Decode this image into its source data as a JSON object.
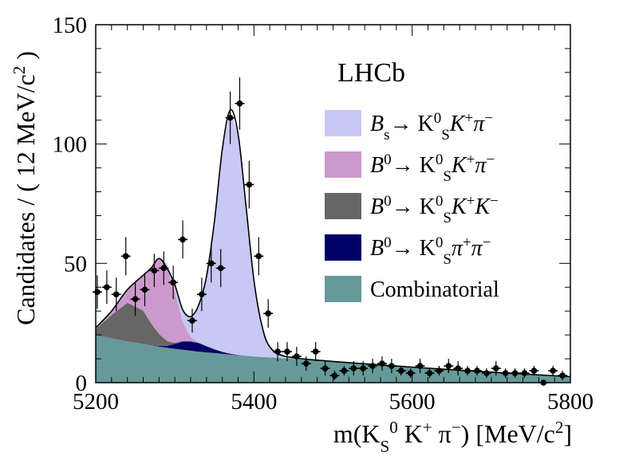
{
  "experiment_label": "LHCb",
  "colors": {
    "bs_kskpi": "#c8c8f5",
    "b0_kskpi": "#cc99cc",
    "b0_kskk": "#666666",
    "b0_kspipi": "#000066",
    "combinatorial": "#669999",
    "curve": "#000000",
    "points": "#000000"
  },
  "chart_data": {
    "type": "area",
    "title": "",
    "xlabel": "m(K_S^0 K^+ π^−) [MeV/c^2]",
    "ylabel": "Candidates / ( 12 MeV/c^2 )",
    "xlim": [
      5200,
      5800
    ],
    "ylim": [
      0,
      150
    ],
    "xticks": [
      5200,
      5400,
      5600,
      5800
    ],
    "yticks": [
      0,
      50,
      100,
      150
    ],
    "grid": false,
    "legend_position": "right",
    "legend": [
      {
        "key": "bs_kskpi",
        "parts": [
          [
            "B",
            ""
          ],
          [
            "s",
            "sub"
          ],
          [
            "→ K",
            ""
          ],
          [
            "0",
            "sup"
          ],
          [
            "S",
            "sub"
          ],
          [
            "K",
            ""
          ],
          [
            "+",
            "sup"
          ],
          [
            "π",
            ""
          ],
          [
            "−",
            "sup"
          ]
        ]
      },
      {
        "key": "b0_kskpi",
        "parts": [
          [
            "B",
            ""
          ],
          [
            "0",
            "sup"
          ],
          [
            "→ K",
            ""
          ],
          [
            "0",
            "sup"
          ],
          [
            "S",
            "sub"
          ],
          [
            "K",
            ""
          ],
          [
            "+",
            "sup"
          ],
          [
            "π",
            ""
          ],
          [
            "−",
            "sup"
          ]
        ]
      },
      {
        "key": "b0_kskk",
        "parts": [
          [
            "B",
            ""
          ],
          [
            "0",
            "sup"
          ],
          [
            "→ K",
            ""
          ],
          [
            "0",
            "sup"
          ],
          [
            "S",
            "sub"
          ],
          [
            "K",
            ""
          ],
          [
            "+",
            "sup"
          ],
          [
            "K",
            ""
          ],
          [
            "−",
            "sup"
          ]
        ]
      },
      {
        "key": "b0_kspipi",
        "parts": [
          [
            "B",
            ""
          ],
          [
            "0",
            "sup"
          ],
          [
            "→ K",
            ""
          ],
          [
            "0",
            "sup"
          ],
          [
            "S",
            "sub"
          ],
          [
            "π",
            ""
          ],
          [
            "+",
            "sup"
          ],
          [
            "π",
            ""
          ],
          [
            "−",
            "sup"
          ]
        ]
      },
      {
        "key": "combinatorial",
        "parts": [
          [
            "Combinatorial",
            ""
          ]
        ]
      }
    ],
    "component_x": [
      5200,
      5220,
      5240,
      5260,
      5270,
      5280,
      5290,
      5300,
      5310,
      5320,
      5330,
      5340,
      5350,
      5360,
      5370,
      5380,
      5390,
      5400,
      5410,
      5420,
      5440,
      5500,
      5600,
      5700,
      5800
    ],
    "series": [
      {
        "key": "combinatorial",
        "name": "Combinatorial",
        "values": [
          20,
          18.6,
          17.3,
          16.2,
          15.6,
          15.1,
          14.6,
          14.2,
          13.8,
          13.4,
          13.0,
          12.7,
          12.4,
          12.1,
          11.8,
          11.5,
          11.3,
          11.0,
          10.8,
          10.6,
          10.2,
          8.9,
          6.5,
          4.4,
          2.5
        ]
      },
      {
        "key": "b0_kspipi",
        "name": "B0→KS0π+π−",
        "values": [
          0,
          0,
          0,
          0,
          0,
          0.3,
          0.8,
          2.0,
          3.5,
          3.9,
          3.6,
          2.6,
          1.6,
          0.8,
          0.3,
          0.1,
          0,
          0,
          0,
          0,
          0,
          0,
          0,
          0,
          0
        ]
      },
      {
        "key": "b0_kskk",
        "name": "B0→KS0K+K−",
        "values": [
          2.5,
          9.7,
          16.2,
          14.0,
          9.2,
          5.0,
          2.0,
          0.5,
          0.1,
          0,
          0,
          0,
          0,
          0,
          0,
          0,
          0,
          0,
          0,
          0,
          0,
          0,
          0,
          0,
          0
        ]
      },
      {
        "key": "b0_kskpi",
        "name": "B0→KS0K+π−",
        "values": [
          0.5,
          1.7,
          5.5,
          14.8,
          23.2,
          31.6,
          31.0,
          21.3,
          8.0,
          1.7,
          0.4,
          0.1,
          0,
          0,
          0,
          0,
          0,
          0,
          0,
          0,
          0,
          0,
          0,
          0,
          0
        ]
      },
      {
        "key": "bs_kskpi",
        "name": "Bs→KS0K+π−",
        "values": [
          0,
          0,
          0,
          0,
          0,
          0.6,
          1.6,
          3.0,
          5.1,
          8.7,
          15.4,
          29.0,
          53.6,
          85.0,
          102.2,
          92.5,
          62.7,
          32.0,
          13.2,
          4.4,
          0.8,
          0,
          0,
          0,
          0
        ]
      }
    ],
    "fit_total": {
      "x": [
        5200,
        5220,
        5240,
        5260,
        5270,
        5280,
        5290,
        5300,
        5310,
        5320,
        5330,
        5340,
        5350,
        5360,
        5370,
        5380,
        5390,
        5400,
        5410,
        5420,
        5440,
        5500,
        5600,
        5700,
        5800
      ],
      "y": [
        23,
        30,
        39,
        45,
        48,
        52,
        48,
        41,
        30.5,
        27.7,
        32.4,
        44.4,
        67.6,
        97.9,
        114.3,
        104.1,
        74.0,
        43.0,
        24.0,
        15.0,
        11.0,
        8.9,
        6.5,
        4.4,
        2.5
      ]
    },
    "points": {
      "x": [
        5202,
        5214,
        5226,
        5238,
        5250,
        5262,
        5274,
        5286,
        5298,
        5310,
        5322,
        5334,
        5346,
        5358,
        5370,
        5382,
        5394,
        5406,
        5418,
        5430,
        5442,
        5454,
        5466,
        5478,
        5490,
        5502,
        5514,
        5526,
        5538,
        5550,
        5562,
        5574,
        5586,
        5598,
        5610,
        5622,
        5634,
        5646,
        5658,
        5670,
        5682,
        5694,
        5706,
        5718,
        5730,
        5742,
        5754,
        5766,
        5778,
        5790
      ],
      "y": [
        38,
        40,
        37,
        53,
        35,
        39,
        47,
        48,
        42,
        60,
        26,
        37,
        50,
        48,
        111,
        117,
        83,
        53,
        29,
        13,
        13,
        11,
        8,
        13,
        6,
        3,
        5,
        6,
        6,
        7,
        8,
        7,
        5,
        4,
        7,
        4,
        5,
        7,
        6,
        5,
        5,
        4,
        6,
        4,
        4,
        4,
        5,
        0,
        5,
        3
      ],
      "err": [
        7,
        7,
        7,
        8,
        7,
        7,
        7,
        7,
        7,
        8,
        5,
        7,
        8,
        8,
        11,
        11,
        10,
        8,
        6,
        4,
        4,
        4,
        3,
        4,
        3,
        2,
        2,
        3,
        3,
        3,
        3,
        3,
        2,
        2,
        3,
        2,
        2,
        3,
        3,
        2,
        2,
        2,
        3,
        2,
        2,
        2,
        2,
        0,
        2,
        2
      ]
    }
  }
}
